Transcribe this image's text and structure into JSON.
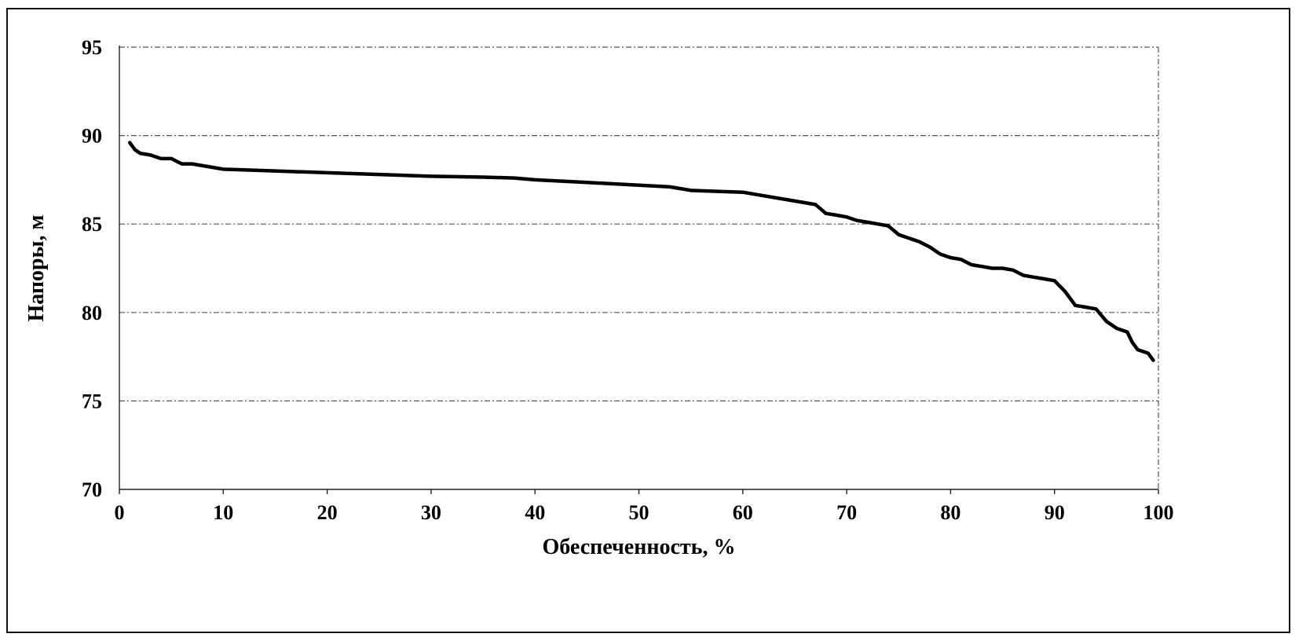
{
  "chart_data": {
    "type": "line",
    "title": "",
    "xlabel": "Обеспеченность, %",
    "ylabel": "Напоры, м",
    "xlim": [
      0,
      100
    ],
    "ylim": [
      70,
      95
    ],
    "x_ticks": [
      0,
      10,
      20,
      30,
      40,
      50,
      60,
      70,
      80,
      90,
      100
    ],
    "y_ticks": [
      70,
      75,
      80,
      85,
      90,
      95
    ],
    "grid": true,
    "legend": "none",
    "series": [
      {
        "color": "#000000",
        "x": [
          1,
          1.5,
          2,
          3,
          4,
          5,
          6,
          7,
          8,
          9,
          10,
          15,
          20,
          25,
          30,
          35,
          38,
          40,
          45,
          50,
          53,
          55,
          60,
          62,
          65,
          67,
          68,
          69,
          70,
          71,
          72,
          73,
          74,
          75,
          76,
          77,
          78,
          79,
          80,
          81,
          82,
          83,
          84,
          85,
          86,
          87,
          88,
          89,
          90,
          91,
          92,
          93,
          94,
          95,
          96,
          97,
          97.5,
          98,
          99,
          99.5
        ],
        "y": [
          89.6,
          89.2,
          89.0,
          88.9,
          88.7,
          88.7,
          88.4,
          88.4,
          88.3,
          88.2,
          88.1,
          88.0,
          87.9,
          87.8,
          87.7,
          87.65,
          87.6,
          87.5,
          87.35,
          87.2,
          87.1,
          86.9,
          86.8,
          86.6,
          86.3,
          86.1,
          85.6,
          85.5,
          85.4,
          85.2,
          85.1,
          85.0,
          84.9,
          84.4,
          84.2,
          84.0,
          83.7,
          83.3,
          83.1,
          83.0,
          82.7,
          82.6,
          82.5,
          82.5,
          82.4,
          82.1,
          82.0,
          81.9,
          81.8,
          81.2,
          80.4,
          80.3,
          80.2,
          79.5,
          79.1,
          78.9,
          78.3,
          77.9,
          77.7,
          77.3
        ]
      }
    ]
  }
}
